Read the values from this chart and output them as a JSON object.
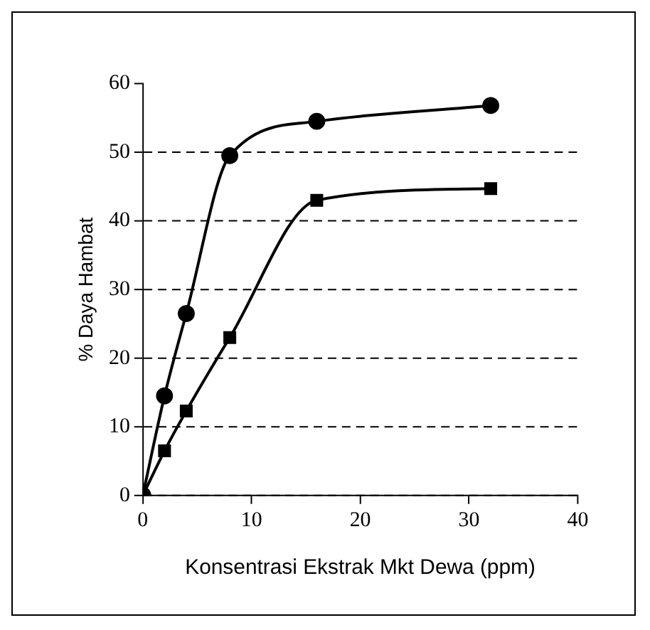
{
  "chart_data": {
    "type": "line",
    "xlabel": "Konsentrasi Ekstrak Mkt Dewa (ppm)",
    "ylabel": "% Daya Hambat",
    "x": [
      0,
      2,
      4,
      8,
      16,
      32
    ],
    "series": [
      {
        "color": "#000000",
        "marker": "circle",
        "values": [
          0,
          14.5,
          26.5,
          49.5,
          54.5,
          56.8
        ]
      },
      {
        "color": "#000000",
        "marker": "square",
        "values": [
          0,
          6.5,
          12.3,
          23,
          43,
          44.7
        ]
      }
    ],
    "xlim": [
      0,
      40
    ],
    "xticks": [
      0,
      10,
      20,
      30,
      40
    ],
    "ylim": [
      0,
      60
    ],
    "yticks": [
      0,
      10,
      20,
      30,
      40,
      50,
      60
    ],
    "grid": "y",
    "line_style": "solid",
    "legend": false
  }
}
